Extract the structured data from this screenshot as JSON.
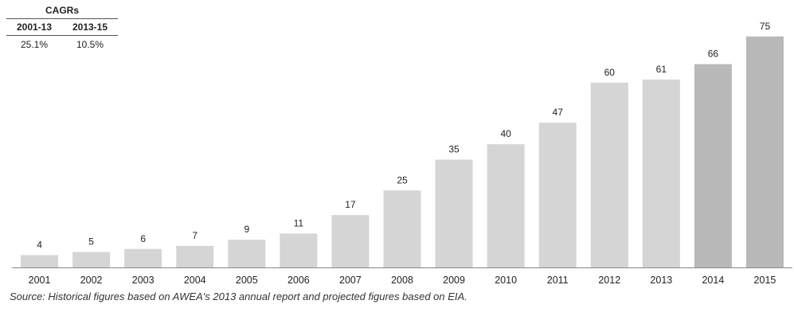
{
  "cagr_table": {
    "title": "CAGRs",
    "headers": [
      "2001-13",
      "2013-15"
    ],
    "values": [
      "25.1%",
      "10.5%"
    ]
  },
  "source_note": "Source: Historical figures based on AWEA's 2013 annual report and projected figures based on EIA.",
  "colors": {
    "historical_bar": "#d5d5d5",
    "projected_bar": "#b9b9b9",
    "axis": "#888888",
    "text": "#222222"
  },
  "chart_data": {
    "type": "bar",
    "title": "",
    "xlabel": "",
    "ylabel": "",
    "categories": [
      "2001",
      "2002",
      "2003",
      "2004",
      "2005",
      "2006",
      "2007",
      "2008",
      "2009",
      "2010",
      "2011",
      "2012",
      "2013",
      "2014",
      "2015"
    ],
    "values": [
      4,
      5,
      6,
      7,
      9,
      11,
      17,
      25,
      35,
      40,
      47,
      60,
      61,
      66,
      75
    ],
    "projected_from_index": 13,
    "ylim": [
      0,
      80
    ],
    "grid": false,
    "legend": "none"
  }
}
